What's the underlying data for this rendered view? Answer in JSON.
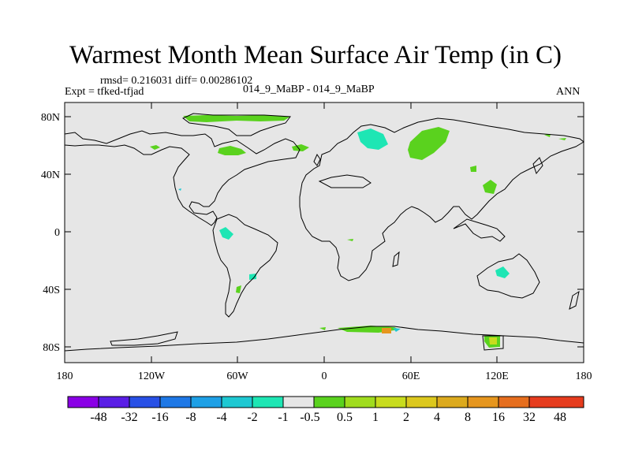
{
  "title": "Warmest Month Mean Surface Air Temp (in C)",
  "stats_line": "rmsd= 0.216031 diff= 0.00286102",
  "expt_line": "Expt = tfked-tfjad",
  "case_line": "014_9_MaBP - 014_9_MaBP",
  "period": "ANN",
  "lat_labels": [
    "80N",
    "40N",
    "0",
    "40S",
    "80S"
  ],
  "lon_labels": [
    "180",
    "120W",
    "60W",
    "0",
    "60E",
    "120E",
    "180"
  ],
  "colorbar": {
    "colors": [
      "#8a00e6",
      "#5a1ee6",
      "#2850e6",
      "#1e78e6",
      "#1ea0e6",
      "#1ec8d2",
      "#1ee6b4",
      "#e6e6e6",
      "#5ad21e",
      "#a0dc1e",
      "#c8dc1e",
      "#dcc81e",
      "#dcaa1e",
      "#e6961e",
      "#e66e1e",
      "#e63c1e"
    ],
    "labels": [
      "-48",
      "-32",
      "-16",
      "-8",
      "-4",
      "-2",
      "-1",
      "-0.5",
      "0.5",
      "1",
      "2",
      "4",
      "8",
      "16",
      "32",
      "48"
    ]
  },
  "colors": {
    "ocean_land_fill": "#e6e6e6",
    "coast": "#000000"
  }
}
